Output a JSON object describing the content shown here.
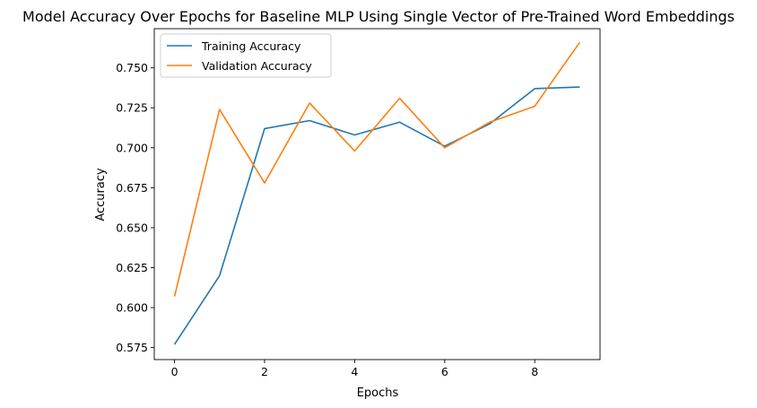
{
  "chart_data": {
    "type": "line",
    "title": "Model Accuracy Over Epochs for Baseline MLP Using Single Vector of Pre-Trained Word Embeddings",
    "xlabel": "Epochs",
    "ylabel": "Accuracy",
    "x": [
      0,
      1,
      2,
      3,
      4,
      5,
      6,
      7,
      8,
      9
    ],
    "xlim": [
      -0.45,
      9.45
    ],
    "ylim": [
      0.5675,
      0.7745
    ],
    "xticks": [
      0,
      2,
      4,
      6,
      8
    ],
    "xtick_labels": [
      "0",
      "2",
      "4",
      "6",
      "8"
    ],
    "yticks": [
      0.575,
      0.6,
      0.625,
      0.65,
      0.675,
      0.7,
      0.725,
      0.75
    ],
    "ytick_labels": [
      "0.575",
      "0.600",
      "0.625",
      "0.650",
      "0.675",
      "0.700",
      "0.725",
      "0.750"
    ],
    "grid": false,
    "legend_position": "top-left",
    "series": [
      {
        "name": "Training Accuracy",
        "color": "#1f77b4",
        "values": [
          0.577,
          0.62,
          0.712,
          0.717,
          0.708,
          0.716,
          0.701,
          0.715,
          0.737,
          0.738
        ]
      },
      {
        "name": "Validation Accuracy",
        "color": "#ff7f0e",
        "values": [
          0.607,
          0.724,
          0.678,
          0.728,
          0.698,
          0.731,
          0.7,
          0.716,
          0.726,
          0.766
        ]
      }
    ]
  }
}
